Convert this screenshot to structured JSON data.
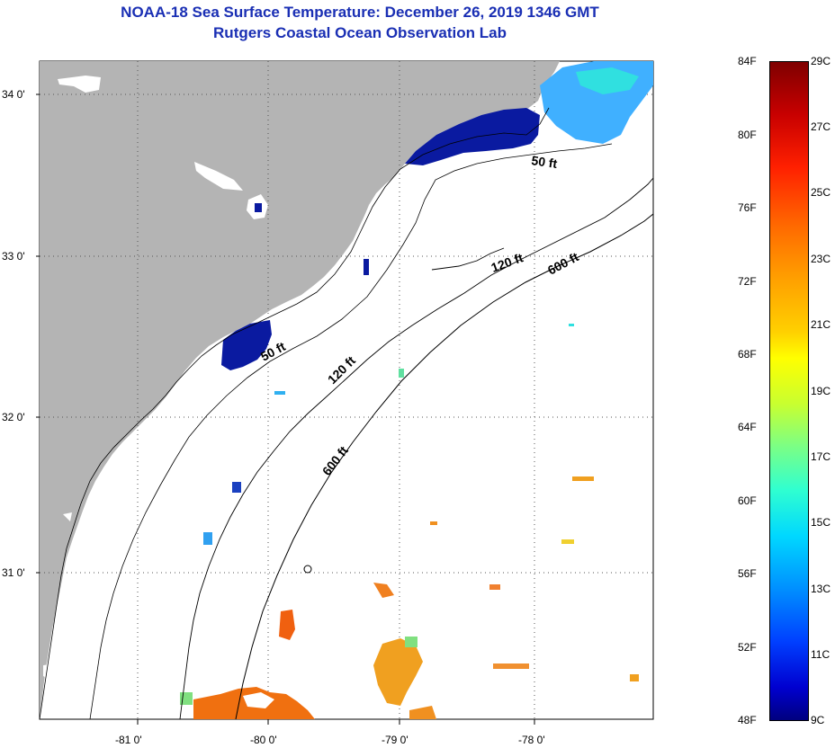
{
  "title_line1": "NOAA-18 Sea Surface Temperature:  December 26, 2019 1346 GMT",
  "title_line2": "Rutgers Coastal Ocean Observation Lab",
  "lon_labels": [
    "-81 0'",
    "-80 0'",
    "-79 0'",
    "-78 0'"
  ],
  "lat_labels": [
    "34 0'",
    "33 0'",
    "32 0'",
    "31 0'"
  ],
  "contour_labels": {
    "d50_north": "50 ft",
    "d50_south": "50 ft",
    "d120_north": "120 ft",
    "d120_south": "120 ft",
    "d600_north": "600 ft",
    "d600_south": "600 ft"
  },
  "colorbar": {
    "fahrenheit": [
      "84F",
      "80F",
      "76F",
      "72F",
      "68F",
      "64F",
      "60F",
      "56F",
      "52F",
      "48F"
    ],
    "celsius": [
      "29C",
      "27C",
      "25C",
      "23C",
      "21C",
      "19C",
      "17C",
      "15C",
      "13C",
      "11C",
      "9C"
    ]
  },
  "colors": {
    "land": "#b4b4b4",
    "title": "#1a2fb4",
    "cold": "#0a1aa0",
    "cyan": "#30d8ff",
    "warm": "#f08c10"
  }
}
